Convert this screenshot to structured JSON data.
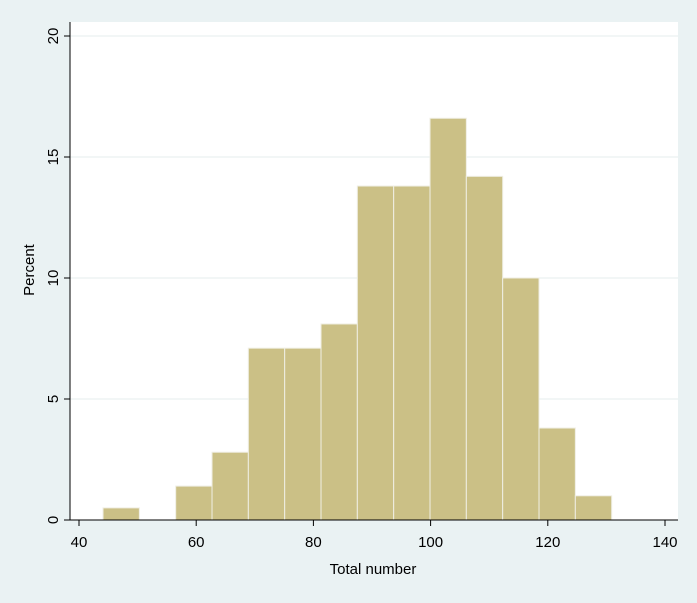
{
  "chart_data": {
    "type": "bar",
    "subtype": "histogram",
    "xlabel": "Total number",
    "ylabel": "Percent",
    "xlim": [
      40,
      140
    ],
    "ylim": [
      0,
      20
    ],
    "x_ticks": [
      40,
      60,
      80,
      100,
      120,
      140
    ],
    "y_ticks": [
      0,
      5,
      10,
      15,
      20
    ],
    "grid": "horizontal",
    "bins": [
      {
        "start": 44.1,
        "end": 50.3,
        "value": 0.5
      },
      {
        "start": 50.3,
        "end": 56.5,
        "value": 0
      },
      {
        "start": 56.5,
        "end": 62.7,
        "value": 1.4
      },
      {
        "start": 62.7,
        "end": 68.9,
        "value": 2.8
      },
      {
        "start": 68.9,
        "end": 75.1,
        "value": 7.1
      },
      {
        "start": 75.1,
        "end": 81.3,
        "value": 7.1
      },
      {
        "start": 81.3,
        "end": 87.5,
        "value": 8.1
      },
      {
        "start": 87.5,
        "end": 93.7,
        "value": 13.8
      },
      {
        "start": 93.7,
        "end": 99.9,
        "value": 13.8
      },
      {
        "start": 99.9,
        "end": 106.1,
        "value": 16.6
      },
      {
        "start": 106.1,
        "end": 112.3,
        "value": 14.2
      },
      {
        "start": 112.3,
        "end": 118.5,
        "value": 10.0
      },
      {
        "start": 118.5,
        "end": 124.7,
        "value": 3.8
      },
      {
        "start": 124.7,
        "end": 130.9,
        "value": 1.0
      }
    ]
  },
  "colors": {
    "background": "#eaf2f3",
    "plot_area": "#ffffff",
    "bar_fill": "#cbc086",
    "bar_edge": "#efeee3",
    "grid": "#e4ecee",
    "axis": "#000000"
  }
}
